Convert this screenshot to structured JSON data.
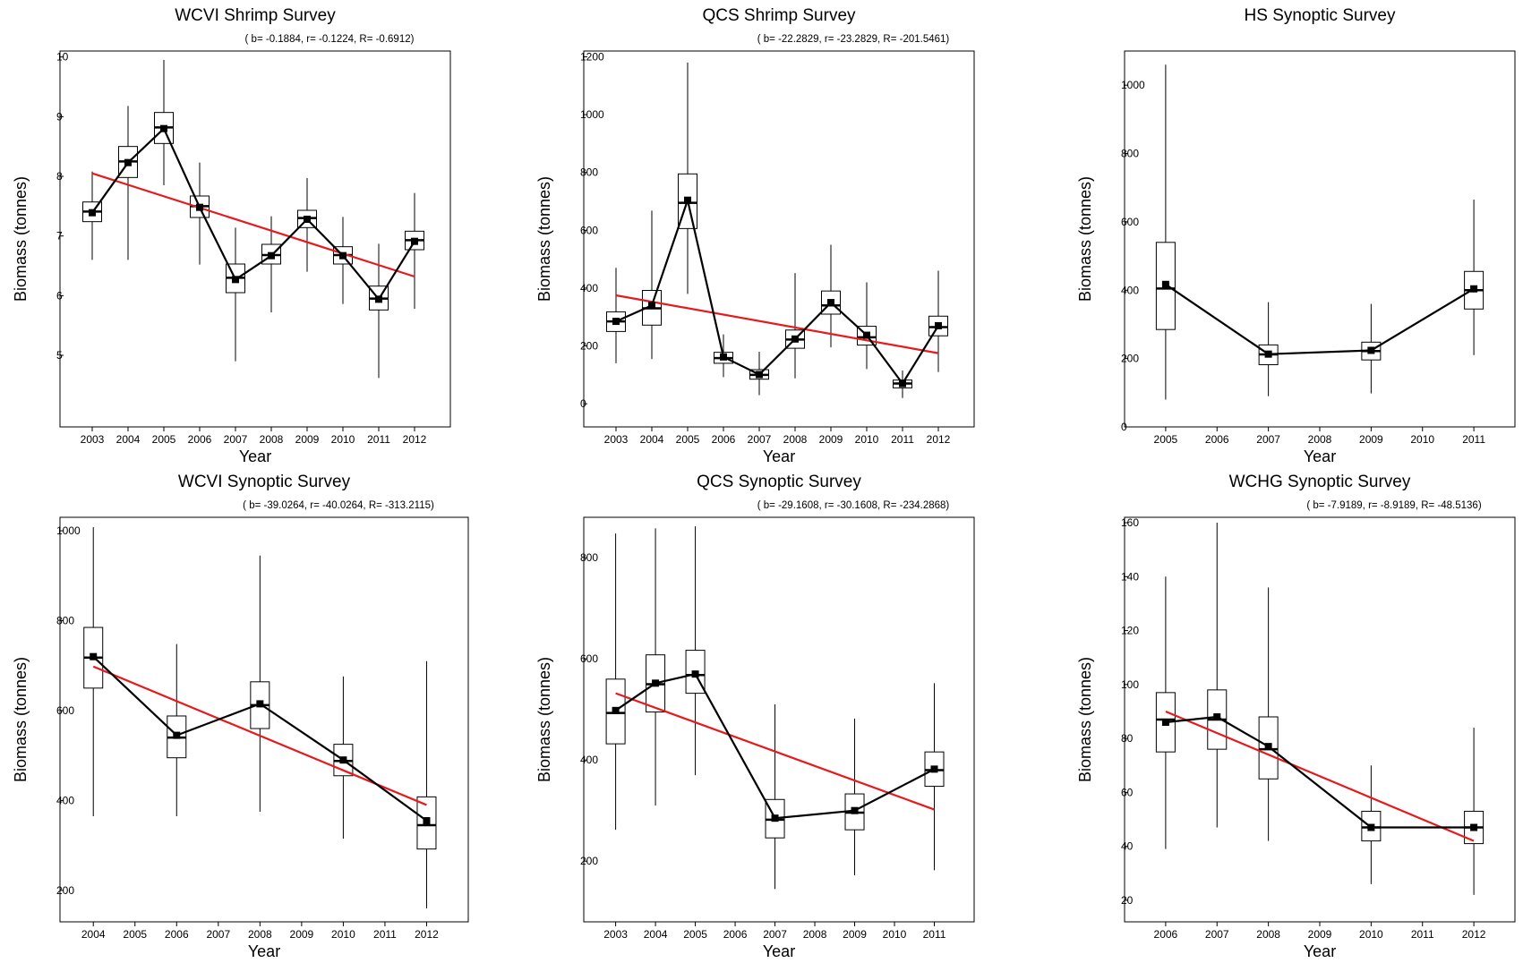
{
  "chart_data": [
    {
      "type": "boxplot",
      "title": "WCVI Shrimp Survey",
      "stats_label": "( b= -0.1884,  r= -0.1224,  R= -0.6912)",
      "xlabel": "Year",
      "ylabel": "Biomass (tonnes)",
      "x_ticks": [
        2003,
        2004,
        2005,
        2006,
        2007,
        2008,
        2009,
        2010,
        2011,
        2012
      ],
      "y_ticks": [
        5,
        6,
        7,
        8,
        9,
        10
      ],
      "xlim": [
        2002.1,
        2013.0
      ],
      "ylim": [
        3.8,
        10.1
      ],
      "colors": {
        "series": "#000000",
        "trend": "#e8191c"
      },
      "boxes": [
        {
          "x": 2003,
          "whisker_low": 6.6,
          "q1": 7.24,
          "median": 7.41,
          "q3": 7.57,
          "whisker_high": 8.08,
          "mean": 7.39
        },
        {
          "x": 2004,
          "whisker_low": 6.6,
          "q1": 7.98,
          "median": 8.25,
          "q3": 8.5,
          "whisker_high": 9.18,
          "mean": 8.23
        },
        {
          "x": 2005,
          "whisker_low": 7.85,
          "q1": 8.55,
          "median": 8.82,
          "q3": 9.07,
          "whisker_high": 9.95,
          "mean": 8.8
        },
        {
          "x": 2006,
          "whisker_low": 6.52,
          "q1": 7.31,
          "median": 7.5,
          "q3": 7.67,
          "whisker_high": 8.23,
          "mean": 7.48
        },
        {
          "x": 2007,
          "whisker_low": 4.9,
          "q1": 6.05,
          "median": 6.3,
          "q3": 6.53,
          "whisker_high": 7.14,
          "mean": 6.27
        },
        {
          "x": 2008,
          "whisker_low": 5.72,
          "q1": 6.53,
          "median": 6.68,
          "q3": 6.86,
          "whisker_high": 7.33,
          "mean": 6.67
        },
        {
          "x": 2009,
          "whisker_low": 6.4,
          "q1": 7.14,
          "median": 7.3,
          "q3": 7.43,
          "whisker_high": 7.97,
          "mean": 7.28
        },
        {
          "x": 2010,
          "whisker_low": 5.86,
          "q1": 6.53,
          "median": 6.68,
          "q3": 6.82,
          "whisker_high": 7.32,
          "mean": 6.67
        },
        {
          "x": 2011,
          "whisker_low": 4.62,
          "q1": 5.76,
          "median": 5.95,
          "q3": 6.16,
          "whisker_high": 6.87,
          "mean": 5.94
        },
        {
          "x": 2012,
          "whisker_low": 5.78,
          "q1": 6.77,
          "median": 6.93,
          "q3": 7.08,
          "whisker_high": 7.72,
          "mean": 6.91
        }
      ],
      "trend": {
        "x": [
          2003,
          2012
        ],
        "y": [
          8.05,
          6.32
        ]
      }
    },
    {
      "type": "boxplot",
      "title": "QCS Shrimp Survey",
      "stats_label": "( b= -22.2829,  r= -23.2829,  R= -201.5461)",
      "xlabel": "Year",
      "ylabel": "Biomass (tonnes)",
      "x_ticks": [
        2003,
        2004,
        2005,
        2006,
        2007,
        2008,
        2009,
        2010,
        2011,
        2012
      ],
      "y_ticks": [
        0,
        200,
        400,
        600,
        800,
        1000,
        1200
      ],
      "xlim": [
        2002.1,
        2013.0
      ],
      "ylim": [
        -80,
        1220
      ],
      "colors": {
        "series": "#000000",
        "trend": "#e8191c"
      },
      "boxes": [
        {
          "x": 2003,
          "whisker_low": 140,
          "q1": 250,
          "median": 285,
          "q3": 318,
          "whisker_high": 470,
          "mean": 285
        },
        {
          "x": 2004,
          "whisker_low": 155,
          "q1": 272,
          "median": 330,
          "q3": 392,
          "whisker_high": 668,
          "mean": 340
        },
        {
          "x": 2005,
          "whisker_low": 380,
          "q1": 606,
          "median": 695,
          "q3": 795,
          "whisker_high": 1180,
          "mean": 704
        },
        {
          "x": 2006,
          "whisker_low": 92,
          "q1": 140,
          "median": 158,
          "q3": 178,
          "whisker_high": 240,
          "mean": 162
        },
        {
          "x": 2007,
          "whisker_low": 30,
          "q1": 85,
          "median": 100,
          "q3": 118,
          "whisker_high": 180,
          "mean": 101
        },
        {
          "x": 2008,
          "whisker_low": 88,
          "q1": 192,
          "median": 222,
          "q3": 255,
          "whisker_high": 452,
          "mean": 224
        },
        {
          "x": 2009,
          "whisker_low": 195,
          "q1": 310,
          "median": 340,
          "q3": 390,
          "whisker_high": 550,
          "mean": 350
        },
        {
          "x": 2010,
          "whisker_low": 120,
          "q1": 203,
          "median": 230,
          "q3": 268,
          "whisker_high": 420,
          "mean": 237
        },
        {
          "x": 2011,
          "whisker_low": 20,
          "q1": 55,
          "median": 70,
          "q3": 82,
          "whisker_high": 115,
          "mean": 70
        },
        {
          "x": 2012,
          "whisker_low": 110,
          "q1": 235,
          "median": 265,
          "q3": 303,
          "whisker_high": 460,
          "mean": 270
        }
      ],
      "trend": {
        "x": [
          2003,
          2012
        ],
        "y": [
          375,
          175
        ]
      }
    },
    {
      "type": "boxplot",
      "title": "HS Synoptic Survey",
      "stats_label": "",
      "xlabel": "Year",
      "ylabel": "Biomass (tonnes)",
      "x_ticks": [
        2005,
        2006,
        2007,
        2008,
        2009,
        2010,
        2011
      ],
      "y_ticks": [
        0,
        200,
        400,
        600,
        800,
        1000
      ],
      "xlim": [
        2004.2,
        2011.8
      ],
      "ylim": [
        0,
        1100
      ],
      "colors": {
        "series": "#000000",
        "trend": "#e8191c"
      },
      "boxes": [
        {
          "x": 2005,
          "whisker_low": 80,
          "q1": 285,
          "median": 405,
          "q3": 540,
          "whisker_high": 1060,
          "mean": 417
        },
        {
          "x": 2007,
          "whisker_low": 90,
          "q1": 182,
          "median": 212,
          "q3": 240,
          "whisker_high": 365,
          "mean": 213
        },
        {
          "x": 2009,
          "whisker_low": 98,
          "q1": 196,
          "median": 222,
          "q3": 248,
          "whisker_high": 360,
          "mean": 224
        },
        {
          "x": 2011,
          "whisker_low": 210,
          "q1": 345,
          "median": 400,
          "q3": 455,
          "whisker_high": 665,
          "mean": 404
        }
      ],
      "trend": null
    },
    {
      "type": "boxplot",
      "title": "WCVI Synoptic Survey",
      "stats_label": "( b= -39.0264,  r= -40.0264,  R= -313.2115)",
      "xlabel": "Year",
      "ylabel": "Biomass (tonnes)",
      "x_ticks": [
        2004,
        2005,
        2006,
        2007,
        2008,
        2009,
        2010,
        2011,
        2012
      ],
      "y_ticks": [
        200,
        400,
        600,
        800,
        1000
      ],
      "xlim": [
        2003.2,
        2013.0
      ],
      "ylim": [
        130,
        1030
      ],
      "colors": {
        "series": "#000000",
        "trend": "#e8191c"
      },
      "boxes": [
        {
          "x": 2004,
          "whisker_low": 365,
          "q1": 650,
          "median": 718,
          "q3": 785,
          "whisker_high": 1008,
          "mean": 720
        },
        {
          "x": 2006,
          "whisker_low": 365,
          "q1": 495,
          "median": 540,
          "q3": 588,
          "whisker_high": 748,
          "mean": 545
        },
        {
          "x": 2008,
          "whisker_low": 375,
          "q1": 560,
          "median": 612,
          "q3": 664,
          "whisker_high": 945,
          "mean": 615
        },
        {
          "x": 2010,
          "whisker_low": 315,
          "q1": 455,
          "median": 488,
          "q3": 525,
          "whisker_high": 676,
          "mean": 490
        },
        {
          "x": 2012,
          "whisker_low": 160,
          "q1": 292,
          "median": 345,
          "q3": 408,
          "whisker_high": 710,
          "mean": 355
        }
      ],
      "trend": {
        "x": [
          2004,
          2012
        ],
        "y": [
          698,
          390
        ]
      }
    },
    {
      "type": "boxplot",
      "title": "QCS Synoptic Survey",
      "stats_label": "( b= -29.1608,  r= -30.1608,  R= -234.2868)",
      "xlabel": "Year",
      "ylabel": "Biomass (tonnes)",
      "x_ticks": [
        2003,
        2004,
        2005,
        2006,
        2007,
        2008,
        2009,
        2010,
        2011
      ],
      "y_ticks": [
        200,
        400,
        600,
        800
      ],
      "xlim": [
        2002.2,
        2012.0
      ],
      "ylim": [
        80,
        880
      ],
      "colors": {
        "series": "#000000",
        "trend": "#e8191c"
      },
      "boxes": [
        {
          "x": 2003,
          "whisker_low": 262,
          "q1": 432,
          "median": 493,
          "q3": 560,
          "whisker_high": 848,
          "mean": 498
        },
        {
          "x": 2004,
          "whisker_low": 310,
          "q1": 495,
          "median": 550,
          "q3": 608,
          "whisker_high": 858,
          "mean": 552
        },
        {
          "x": 2005,
          "whisker_low": 370,
          "q1": 532,
          "median": 568,
          "q3": 617,
          "whisker_high": 862,
          "mean": 570
        },
        {
          "x": 2007,
          "whisker_low": 145,
          "q1": 246,
          "median": 282,
          "q3": 322,
          "whisker_high": 510,
          "mean": 285
        },
        {
          "x": 2009,
          "whisker_low": 172,
          "q1": 262,
          "median": 296,
          "q3": 333,
          "whisker_high": 482,
          "mean": 300
        },
        {
          "x": 2011,
          "whisker_low": 182,
          "q1": 348,
          "median": 380,
          "q3": 416,
          "whisker_high": 552,
          "mean": 382
        }
      ],
      "trend": {
        "x": [
          2003,
          2011
        ],
        "y": [
          532,
          302
        ]
      }
    },
    {
      "type": "boxplot",
      "title": "WCHG Synoptic Survey",
      "stats_label": "( b= -7.9189,  r= -8.9189,  R= -48.5136)",
      "xlabel": "Year",
      "ylabel": "Biomass (tonnes)",
      "x_ticks": [
        2006,
        2007,
        2008,
        2009,
        2010,
        2011,
        2012
      ],
      "y_ticks": [
        20,
        40,
        60,
        80,
        100,
        120,
        140,
        160
      ],
      "xlim": [
        2005.2,
        2012.8
      ],
      "ylim": [
        12,
        162
      ],
      "colors": {
        "series": "#000000",
        "trend": "#e8191c"
      },
      "boxes": [
        {
          "x": 2006,
          "whisker_low": 39,
          "q1": 75,
          "median": 87,
          "q3": 97,
          "whisker_high": 140,
          "mean": 86
        },
        {
          "x": 2007,
          "whisker_low": 47,
          "q1": 76,
          "median": 87,
          "q3": 98,
          "whisker_high": 160,
          "mean": 88
        },
        {
          "x": 2008,
          "whisker_low": 42,
          "q1": 65,
          "median": 76,
          "q3": 88,
          "whisker_high": 136,
          "mean": 77
        },
        {
          "x": 2010,
          "whisker_low": 26,
          "q1": 42,
          "median": 47,
          "q3": 53,
          "whisker_high": 70,
          "mean": 47
        },
        {
          "x": 2012,
          "whisker_low": 22,
          "q1": 41,
          "median": 47,
          "q3": 53,
          "whisker_high": 84,
          "mean": 47
        }
      ],
      "trend": {
        "x": [
          2006,
          2012
        ],
        "y": [
          90,
          42
        ]
      }
    }
  ]
}
